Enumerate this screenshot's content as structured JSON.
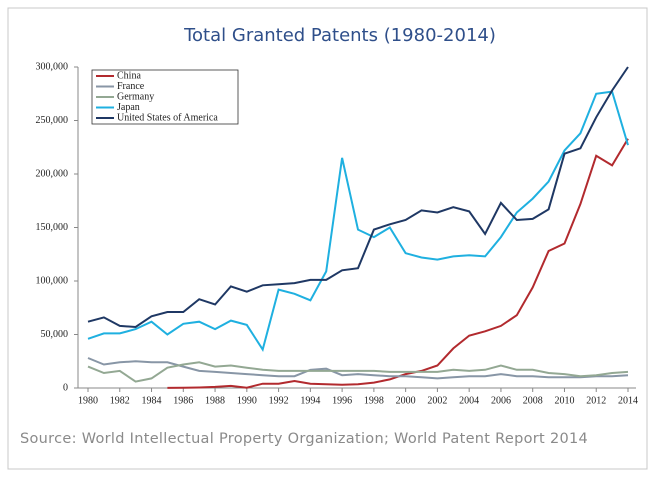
{
  "chart_data": {
    "type": "line",
    "title": "Total Granted Patents (1980-2014)",
    "source": "Source: World Intellectual Property Organization; World Patent Report 2014",
    "x": [
      1980,
      1981,
      1982,
      1983,
      1984,
      1985,
      1986,
      1987,
      1988,
      1989,
      1990,
      1991,
      1992,
      1993,
      1994,
      1995,
      1996,
      1997,
      1998,
      1999,
      2000,
      2001,
      2002,
      2003,
      2004,
      2005,
      2006,
      2007,
      2008,
      2009,
      2010,
      2011,
      2012,
      2013,
      2014
    ],
    "series": [
      {
        "name": "China",
        "color": "#b22a2e",
        "values": [
          null,
          null,
          null,
          null,
          null,
          100,
          200,
          500,
          1000,
          2000,
          300,
          4000,
          4000,
          6500,
          4000,
          3500,
          3000,
          3500,
          5000,
          8000,
          13000,
          16000,
          21000,
          37000,
          49000,
          53000,
          58000,
          68000,
          94000,
          128000,
          135000,
          172000,
          217000,
          208000,
          233000
        ]
      },
      {
        "name": "France",
        "color": "#8896a6",
        "values": [
          28000,
          22000,
          24000,
          25000,
          24000,
          24000,
          20000,
          16000,
          15000,
          14000,
          13000,
          12000,
          11000,
          11000,
          17000,
          18000,
          12000,
          13000,
          12000,
          11000,
          11000,
          10000,
          9000,
          10000,
          11000,
          11000,
          13000,
          11000,
          11000,
          10000,
          10000,
          10000,
          11000,
          11000,
          12000
        ]
      },
      {
        "name": "Germany",
        "color": "#93a893",
        "values": [
          20000,
          14000,
          16000,
          6000,
          9000,
          19000,
          22000,
          24000,
          20000,
          21000,
          19000,
          17000,
          16000,
          16000,
          16000,
          16000,
          16000,
          16000,
          16000,
          15000,
          15000,
          15000,
          15000,
          17000,
          16000,
          17000,
          21000,
          17000,
          17000,
          14000,
          13000,
          11000,
          12000,
          14000,
          15000
        ]
      },
      {
        "name": "Japan",
        "color": "#1fb0e0",
        "values": [
          46000,
          51000,
          51000,
          55000,
          62000,
          50000,
          60000,
          62000,
          55000,
          63000,
          59000,
          36000,
          92000,
          88000,
          82000,
          109000,
          215000,
          148000,
          141000,
          150000,
          126000,
          122000,
          120000,
          123000,
          124000,
          123000,
          141000,
          164000,
          177000,
          193000,
          222000,
          238000,
          275000,
          277000,
          227000
        ]
      },
      {
        "name": "United States of America",
        "color": "#1f3864",
        "values": [
          62000,
          66000,
          58000,
          57000,
          67000,
          71000,
          71000,
          83000,
          78000,
          95000,
          90000,
          96000,
          97000,
          98000,
          101000,
          101000,
          110000,
          112000,
          148000,
          153000,
          157000,
          166000,
          164000,
          169000,
          165000,
          144000,
          173000,
          157000,
          158000,
          167000,
          219000,
          224000,
          253000,
          278000,
          300000
        ]
      }
    ],
    "xlim": [
      1980,
      2014
    ],
    "xticks": [
      1980,
      1982,
      1984,
      1986,
      1988,
      1990,
      1992,
      1994,
      1996,
      1998,
      2000,
      2002,
      2004,
      2006,
      2008,
      2010,
      2012,
      2014
    ],
    "ylim": [
      0,
      300000
    ],
    "yticks": [
      0,
      {
        "value": 50000,
        "label": "50,000"
      },
      {
        "value": 100000,
        "label": "100,000"
      },
      {
        "value": 150000,
        "label": "150,000"
      },
      {
        "value": 200000,
        "label": "200,000"
      },
      {
        "value": 250000,
        "label": "250,000"
      },
      {
        "value": 300000,
        "label": "300,000"
      }
    ],
    "legend": "upper left"
  }
}
